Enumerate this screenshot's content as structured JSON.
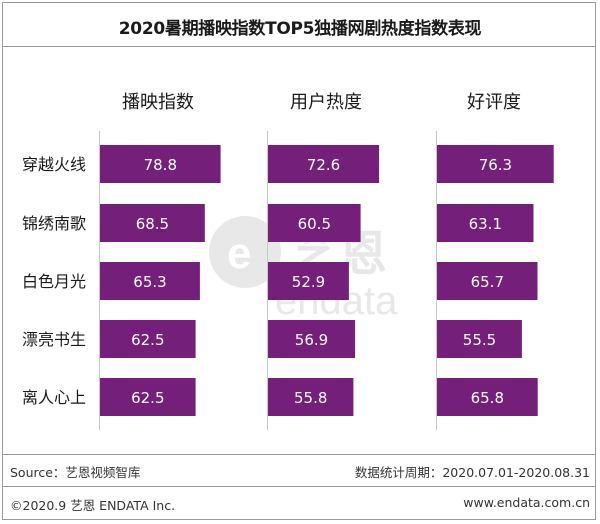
{
  "title": "2020暑期播映指数TOP5独播网剧热度指数表现",
  "bar_color": "#74207a",
  "chart_data": {
    "type": "bar",
    "categories": [
      "穿越火线",
      "锦绣南歌",
      "白色月光",
      "漂亮书生",
      "离人心上"
    ],
    "series": [
      {
        "name": "播映指数",
        "values": [
          78.8,
          68.5,
          65.3,
          62.5,
          62.5
        ]
      },
      {
        "name": "用户热度",
        "values": [
          72.6,
          60.5,
          52.9,
          56.9,
          55.8
        ]
      },
      {
        "name": "好评度",
        "values": [
          76.3,
          63.1,
          65.7,
          55.5,
          65.8
        ]
      }
    ]
  },
  "watermark": {
    "cn": "艺恩",
    "en": "endata"
  },
  "footer": {
    "source": "Source：艺恩视频智库",
    "period": "数据统计周期：2020.07.01-2020.08.31",
    "copyright": "©2020.9 艺恩 ENDATA Inc.",
    "website": "www.endata.com.cn"
  }
}
